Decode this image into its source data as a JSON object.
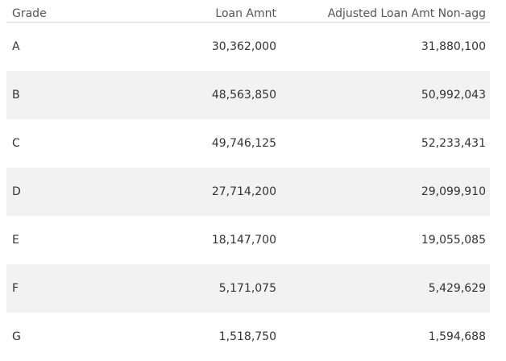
{
  "table": {
    "headers": {
      "grade": "Grade",
      "loan_amnt": "Loan Amnt",
      "adjusted": "Adjusted Loan Amt Non-agg"
    },
    "rows": [
      {
        "grade": "A",
        "loan_amnt": "30,362,000",
        "adjusted": "31,880,100"
      },
      {
        "grade": "B",
        "loan_amnt": "48,563,850",
        "adjusted": "50,992,043"
      },
      {
        "grade": "C",
        "loan_amnt": "49,746,125",
        "adjusted": "52,233,431"
      },
      {
        "grade": "D",
        "loan_amnt": "27,714,200",
        "adjusted": "29,099,910"
      },
      {
        "grade": "E",
        "loan_amnt": "18,147,700",
        "adjusted": "19,055,085"
      },
      {
        "grade": "F",
        "loan_amnt": "5,171,075",
        "adjusted": "5,429,629"
      },
      {
        "grade": "G",
        "loan_amnt": "1,518,750",
        "adjusted": "1,594,688"
      }
    ]
  }
}
